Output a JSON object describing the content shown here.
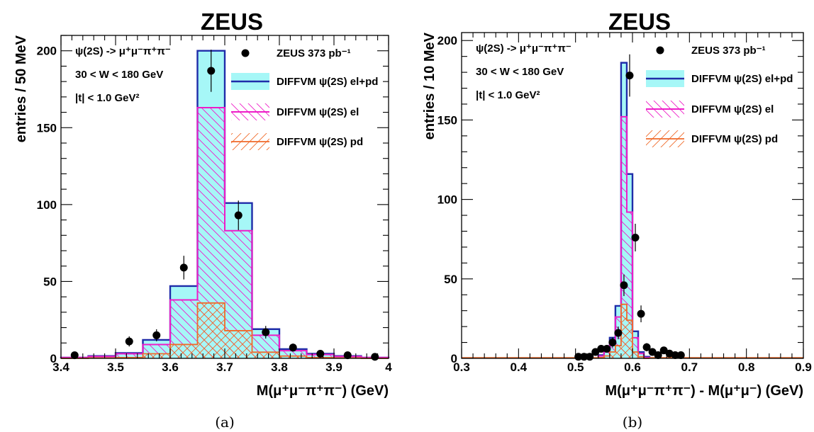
{
  "colors": {
    "total_fill": "#a6f7f7",
    "total_line": "#1f2ca9",
    "el_line": "#ee1cc8",
    "pd_line": "#f06a2a",
    "data": "#000000",
    "axis": "#000000"
  },
  "chart_data": [
    {
      "type": "bar",
      "title": "ZEUS",
      "caption": "(a)",
      "xlabel": "M(μ⁺μ⁻π⁺π⁻) (GeV)",
      "ylabel": "entries / 50 MeV",
      "xlim": [
        3.4,
        4.0
      ],
      "ylim": [
        0,
        210
      ],
      "x_ticks": [
        "3.4",
        "3.5",
        "3.6",
        "3.7",
        "3.8",
        "3.9",
        "4"
      ],
      "y_ticks": [
        "0",
        "50",
        "100",
        "150",
        "200"
      ],
      "annotations": [
        "ψ(2S) -> μ⁺μ⁻π⁺π⁻",
        "30 < W < 180 GeV",
        "|t| < 1.0 GeV²"
      ],
      "legend": {
        "placement": "top-right",
        "entries": [
          "ZEUS 373 pb⁻¹",
          "DIFFVM ψ(2S) el+pd",
          "DIFFVM ψ(2S) el",
          "DIFFVM ψ(2S) pd"
        ]
      },
      "bin_edges": [
        3.4,
        3.45,
        3.5,
        3.55,
        3.6,
        3.65,
        3.7,
        3.75,
        3.8,
        3.85,
        3.9,
        3.95,
        4.0
      ],
      "series": [
        {
          "name": "DIFFVM ψ(2S) el+pd",
          "values": [
            0.5,
            1.5,
            3.5,
            12,
            47,
            200,
            101,
            19,
            6,
            3,
            1.5,
            0.5
          ]
        },
        {
          "name": "DIFFVM ψ(2S) el",
          "values": [
            0.5,
            1.2,
            3,
            9,
            38,
            163,
            83,
            15,
            5,
            2.5,
            1.2,
            0.5
          ]
        },
        {
          "name": "DIFFVM ψ(2S) pd",
          "values": [
            0,
            0.3,
            0.5,
            3,
            9,
            36,
            18,
            4,
            1.5,
            0.5,
            0.3,
            0
          ]
        },
        {
          "name": "ZEUS 373 pb⁻¹",
          "x": [
            3.425,
            3.525,
            3.575,
            3.625,
            3.675,
            3.725,
            3.775,
            3.825,
            3.875,
            3.925,
            3.975
          ],
          "y": [
            2,
            11,
            15,
            59,
            187,
            93,
            17,
            7,
            3,
            2,
            1
          ],
          "err": [
            1.4,
            3.3,
            3.9,
            7.7,
            13.7,
            9.6,
            4.1,
            2.6,
            1.7,
            1.4,
            1
          ]
        }
      ]
    },
    {
      "type": "bar",
      "title": "ZEUS",
      "caption": "(b)",
      "xlabel": "M(μ⁺μ⁻π⁺π⁻) - M(μ⁺μ⁻) (GeV)",
      "ylabel": "entries / 10 MeV",
      "xlim": [
        0.3,
        0.9
      ],
      "ylim": [
        0,
        205
      ],
      "x_ticks": [
        "0.3",
        "0.4",
        "0.5",
        "0.6",
        "0.7",
        "0.8",
        "0.9"
      ],
      "y_ticks": [
        "0",
        "50",
        "100",
        "150",
        "200"
      ],
      "annotations": [
        "ψ(2S) -> μ⁺μ⁻π⁺π⁻",
        "30 < W < 180 GeV",
        "|t| < 1.0 GeV²"
      ],
      "legend": {
        "placement": "top-right",
        "entries": [
          "ZEUS 373 pb⁻¹",
          "DIFFVM ψ(2S) el+pd",
          "DIFFVM ψ(2S) el",
          "DIFFVM ψ(2S) pd"
        ]
      },
      "bin_edges": [
        0.54,
        0.55,
        0.56,
        0.57,
        0.58,
        0.59,
        0.6,
        0.61,
        0.62,
        0.63
      ],
      "series": [
        {
          "name": "DIFFVM ψ(2S) el+pd",
          "values": [
            2,
            5,
            13,
            33,
            186,
            116,
            17,
            4,
            1
          ]
        },
        {
          "name": "DIFFVM ψ(2S) el",
          "values": [
            1.5,
            4,
            10,
            26,
            152,
            92,
            13,
            3,
            0.5
          ]
        },
        {
          "name": "DIFFVM ψ(2S) pd",
          "values": [
            0.5,
            1.5,
            4,
            8,
            34,
            24,
            4,
            1,
            0
          ]
        },
        {
          "name": "ZEUS 373 pb⁻¹",
          "x": [
            0.505,
            0.515,
            0.525,
            0.535,
            0.545,
            0.555,
            0.565,
            0.575,
            0.585,
            0.595,
            0.605,
            0.615,
            0.625,
            0.635,
            0.645,
            0.655,
            0.665,
            0.675,
            0.685
          ],
          "y": [
            1,
            1,
            1,
            4,
            6,
            6,
            10,
            16,
            46,
            178,
            76,
            28,
            7,
            4,
            2,
            5,
            3,
            2,
            2
          ],
          "err": [
            1,
            1,
            1,
            2,
            2.4,
            2.4,
            3.2,
            4,
            6.8,
            13.3,
            8.7,
            5.3,
            2.6,
            2,
            1.4,
            2.2,
            1.7,
            1.4,
            1.4
          ]
        }
      ]
    }
  ]
}
